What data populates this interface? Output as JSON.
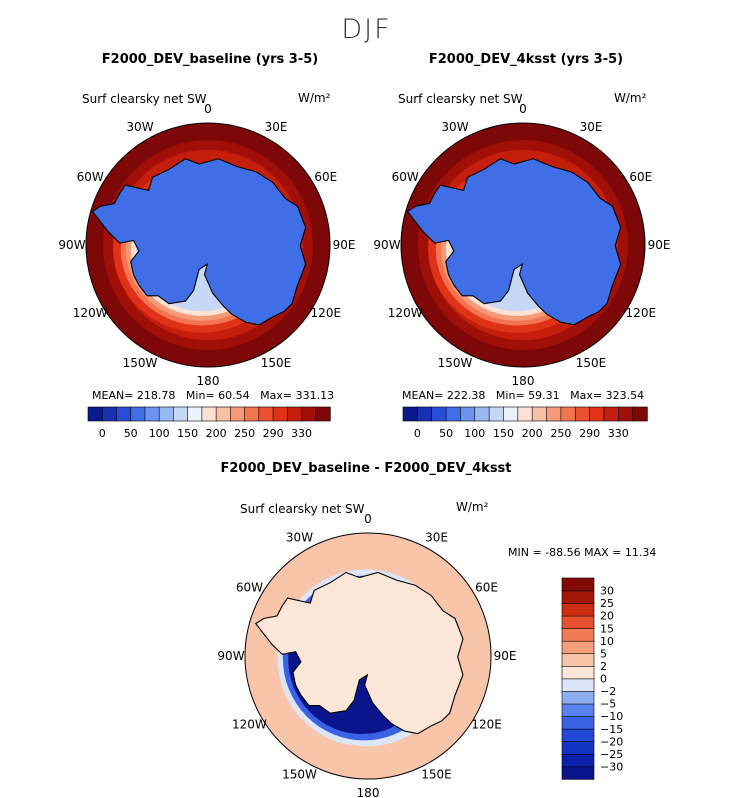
{
  "figure": {
    "title": "DJF",
    "variable": "Surf clearsky net SW",
    "units": "W/m²",
    "lon_labels": [
      "0",
      "30E",
      "60E",
      "90E",
      "120E",
      "150E",
      "180",
      "150W",
      "120W",
      "90W",
      "60W",
      "30W"
    ]
  },
  "panels": [
    {
      "title": "F2000_DEV_baseline (yrs 3-5)",
      "stats": {
        "mean_label": "MEAN=",
        "mean": "218.78",
        "min_label": "Min=",
        "min": "60.54",
        "max_label": "Max=",
        "max": "331.13"
      }
    },
    {
      "title": "F2000_DEV_4ksst (yrs 3-5)",
      "stats": {
        "mean_label": "MEAN=",
        "mean": "222.38",
        "min_label": "Min=",
        "min": "59.31",
        "max_label": "Max=",
        "max": "323.54"
      }
    },
    {
      "title": "F2000_DEV_baseline - F2000_DEV_4ksst",
      "stats": {
        "text": "MIN = -88.56 MAX =  11.34"
      }
    }
  ],
  "chart_data": [
    {
      "type": "heatmap",
      "projection": "south-polar-stereographic",
      "title": "F2000_DEV_baseline (yrs 3-5)",
      "variable": "Surf clearsky net SW",
      "units": "W/m²",
      "mean": 218.78,
      "min": 60.54,
      "max": 331.13,
      "colorbar_levels": [
        0,
        50,
        100,
        150,
        200,
        250,
        290,
        330
      ],
      "colorbar_tick_labels": [
        "0",
        "50",
        "100",
        "150",
        "200",
        "250",
        "290",
        "330"
      ],
      "colorbar_colors": [
        "#0a1a8c",
        "#1630b4",
        "#2a4cd6",
        "#3f6ee6",
        "#6a94ee",
        "#98b8f2",
        "#c6d8f6",
        "#ecf2fb",
        "#fbe2d4",
        "#f8c0a4",
        "#f59a78",
        "#f27550",
        "#ec5030",
        "#df3216",
        "#c41e0c",
        "#a01008",
        "#7e0808"
      ],
      "regions": {
        "ocean_north": 315,
        "ocean_mid": 290,
        "sea_ice_edge": 200,
        "antarctica": 75
      }
    },
    {
      "type": "heatmap",
      "projection": "south-polar-stereographic",
      "title": "F2000_DEV_4ksst (yrs 3-5)",
      "variable": "Surf clearsky net SW",
      "units": "W/m²",
      "mean": 222.38,
      "min": 59.31,
      "max": 323.54,
      "colorbar_levels": [
        0,
        50,
        100,
        150,
        200,
        250,
        290,
        330
      ],
      "colorbar_tick_labels": [
        "0",
        "50",
        "100",
        "150",
        "200",
        "250",
        "290",
        "330"
      ],
      "colorbar_colors": [
        "#0a1a8c",
        "#1630b4",
        "#2a4cd6",
        "#3f6ee6",
        "#6a94ee",
        "#98b8f2",
        "#c6d8f6",
        "#ecf2fb",
        "#fbe2d4",
        "#f8c0a4",
        "#f59a78",
        "#f27550",
        "#ec5030",
        "#df3216",
        "#c41e0c",
        "#a01008",
        "#7e0808"
      ],
      "regions": {
        "ocean_north": 315,
        "ocean_mid": 290,
        "sea_ice_edge": 210,
        "antarctica": 75
      }
    },
    {
      "type": "heatmap",
      "projection": "south-polar-stereographic",
      "title": "F2000_DEV_baseline - F2000_DEV_4ksst",
      "variable": "Surf clearsky net SW",
      "units": "W/m²",
      "min": -88.56,
      "max": 11.34,
      "colorbar_levels": [
        -30,
        -25,
        -20,
        -15,
        -10,
        -5,
        -2,
        0,
        2,
        5,
        10,
        15,
        20,
        25,
        30
      ],
      "colorbar_tick_labels": [
        "-30",
        "-25",
        "-20",
        "-15",
        "-10",
        "-5",
        "-2",
        "0",
        "2",
        "5",
        "10",
        "15",
        "20",
        "25",
        "30"
      ],
      "colorbar_colors": [
        "#0a148c",
        "#0c22aa",
        "#1434c4",
        "#2248d8",
        "#3a62e4",
        "#5a82ec",
        "#8eaef2",
        "#dce6f8",
        "#fce6d8",
        "#f8c4aa",
        "#f4a07c",
        "#f07c56",
        "#e65230",
        "#cc2e12",
        "#a41808",
        "#820a04"
      ],
      "regions": {
        "ocean": 4,
        "sea_ice_edge": -30,
        "antarctica": 1
      }
    }
  ]
}
